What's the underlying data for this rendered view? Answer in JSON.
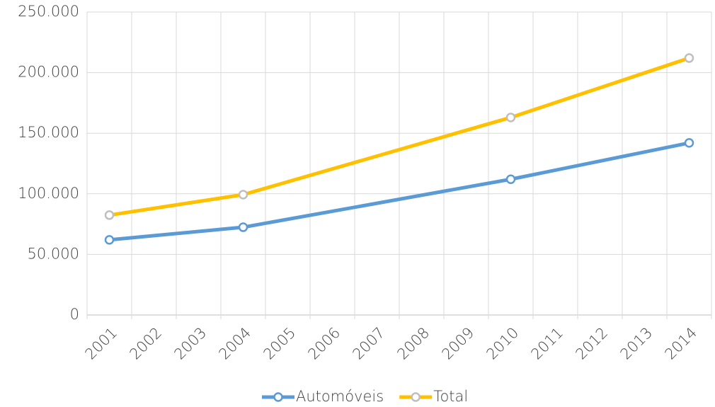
{
  "chart_data": {
    "type": "line",
    "x": [
      2001,
      2004,
      2010,
      2014
    ],
    "xlim": [
      2000.5,
      2014.5
    ],
    "xticks": [
      2001,
      2002,
      2003,
      2004,
      2005,
      2006,
      2007,
      2008,
      2009,
      2010,
      2011,
      2012,
      2013,
      2014
    ],
    "ylim": [
      0,
      250000
    ],
    "yticks": [
      0,
      {
        "value": 50000,
        "label": "50.000"
      },
      {
        "value": 100000,
        "label": "100.000"
      },
      {
        "value": 150000,
        "label": "150.000"
      },
      {
        "value": 200000,
        "label": "200.000"
      },
      {
        "value": 250000,
        "label": "250.000"
      }
    ],
    "grid": true,
    "legend": "bottom",
    "series": [
      {
        "name": "Automóveis",
        "color": "#5b9bd5",
        "marker_stroke": "#5b9bd5",
        "values": [
          62000,
          72400,
          112000,
          142000
        ]
      },
      {
        "name": "Total",
        "color": "#ffc000",
        "marker_stroke": "#bfbfbf",
        "values": [
          82400,
          99300,
          163000,
          212000
        ]
      }
    ]
  }
}
